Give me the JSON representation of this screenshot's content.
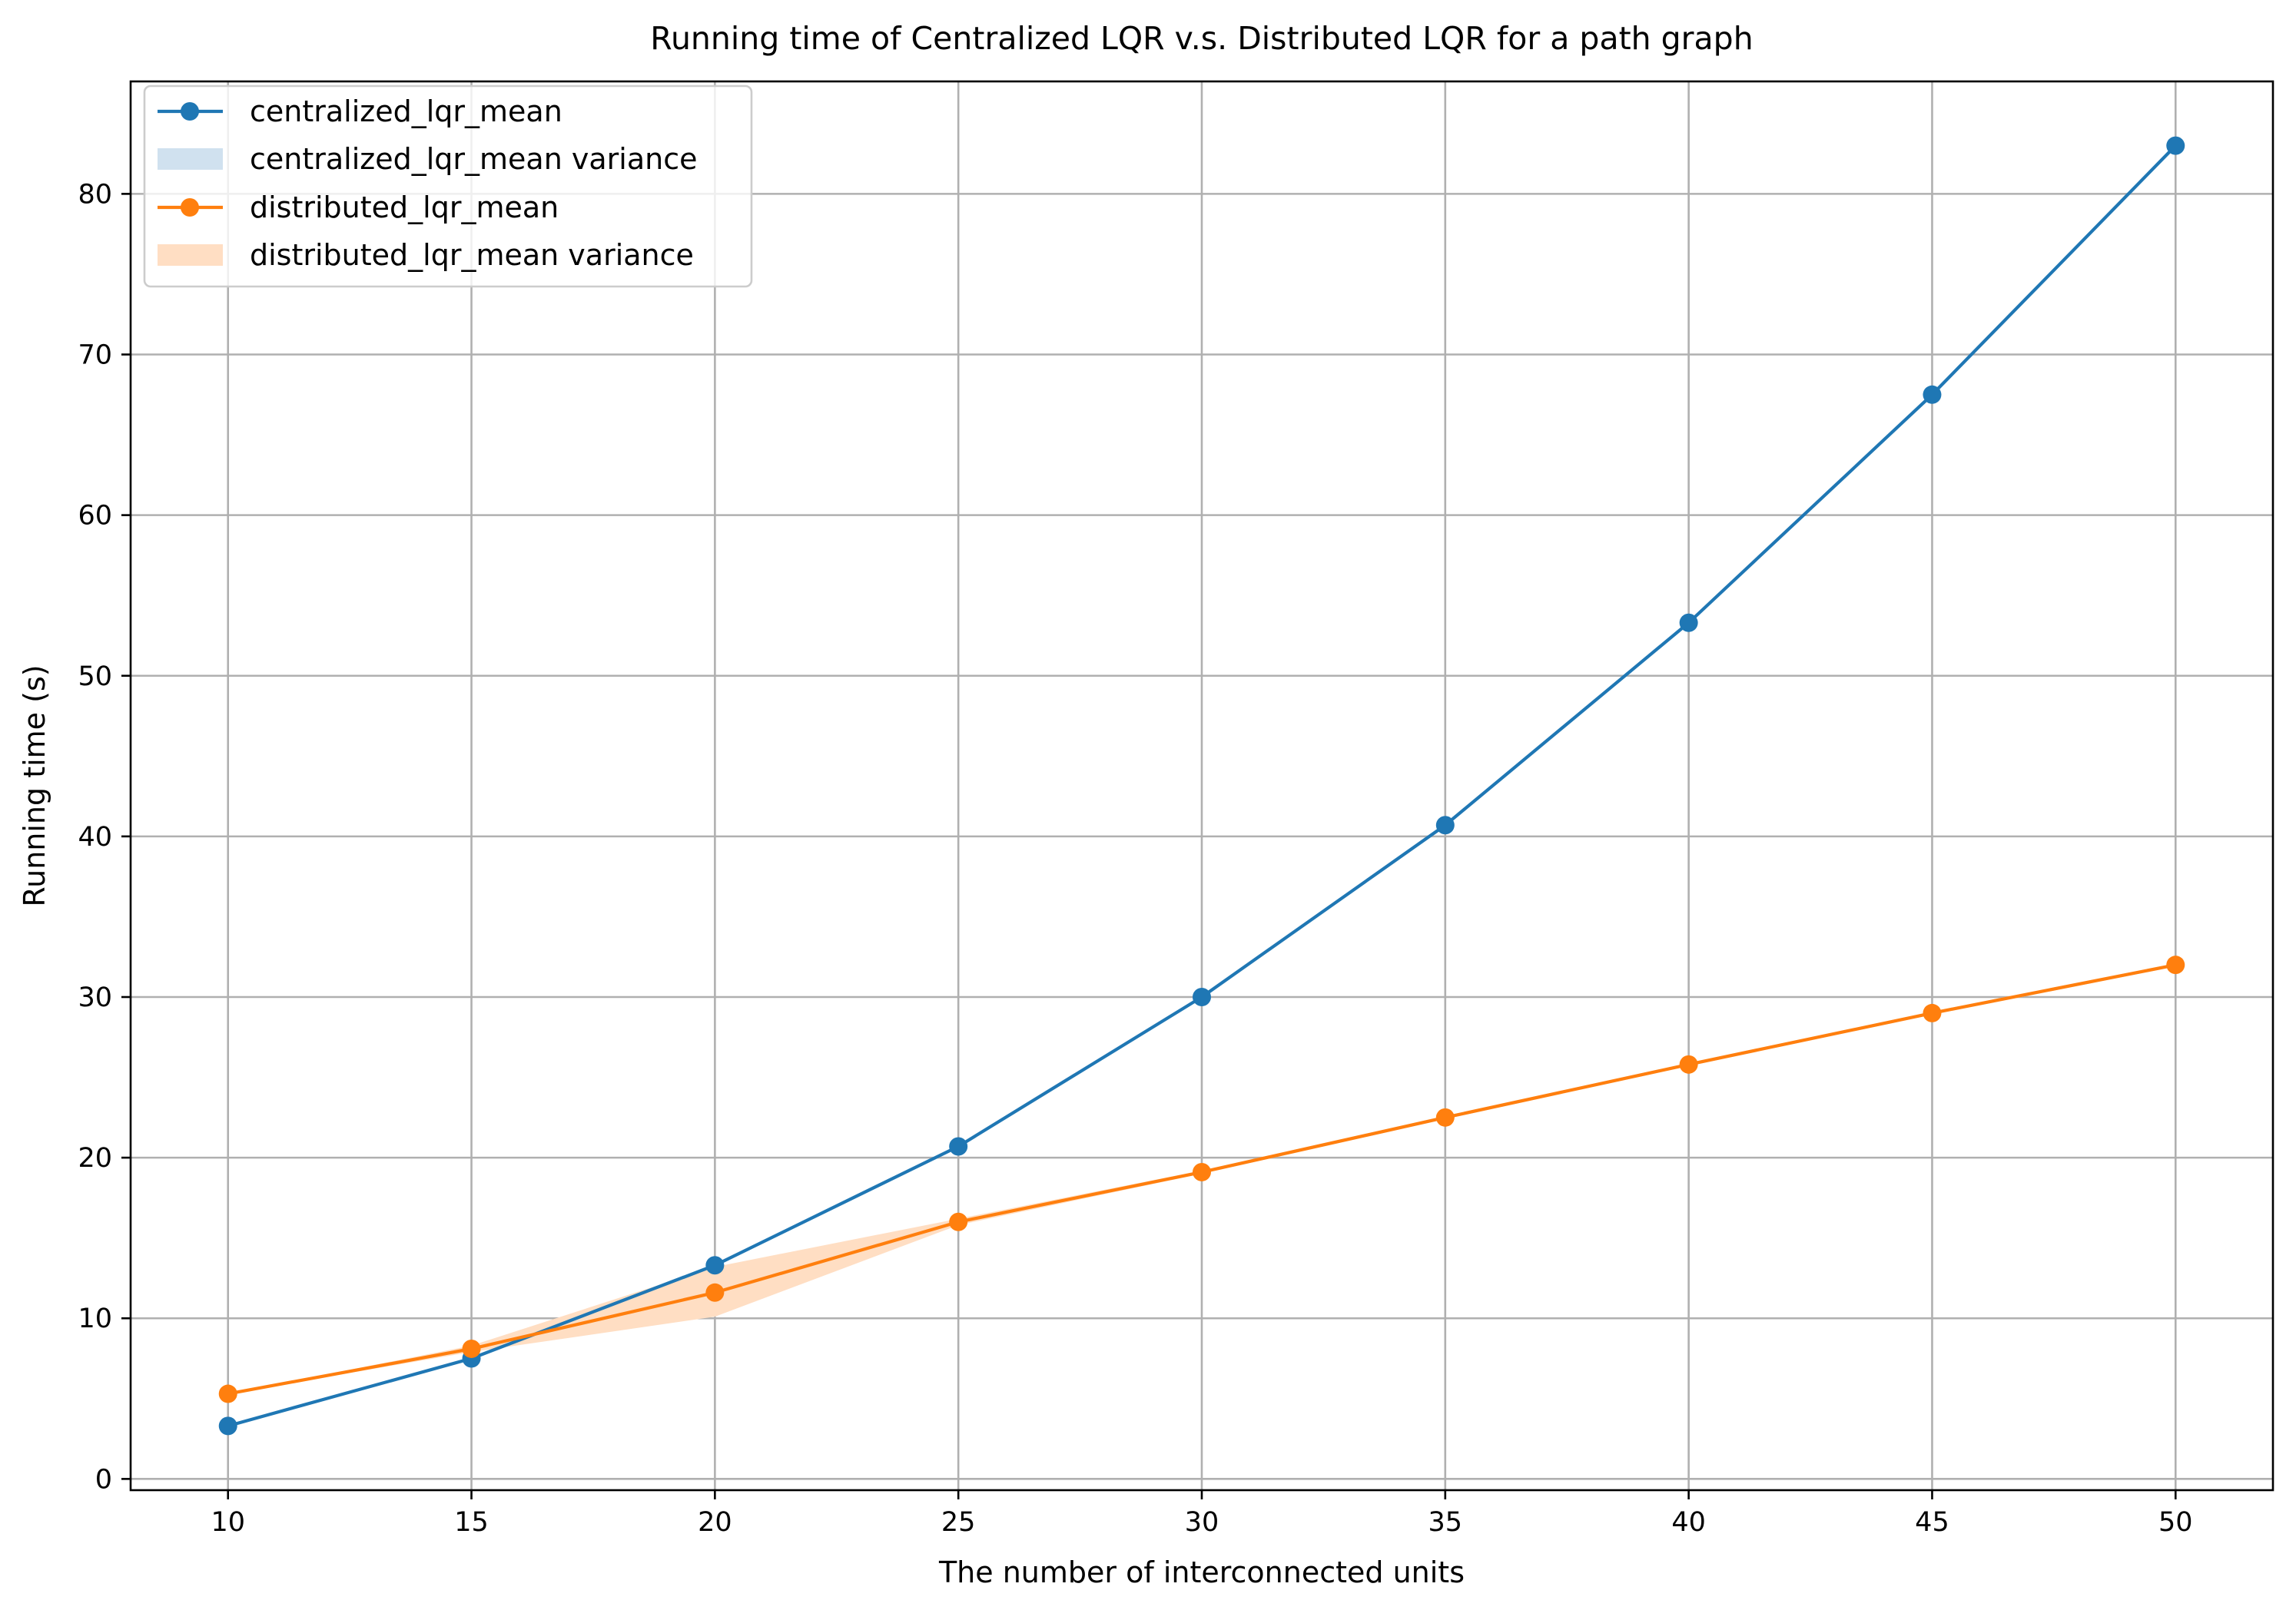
{
  "chart_data": {
    "type": "line",
    "title": "Running time of Centralized LQR v.s. Distributed LQR for a path graph",
    "xlabel": "The number of interconnected units",
    "ylabel": "Running time (s)",
    "x": [
      10,
      15,
      20,
      25,
      30,
      35,
      40,
      45,
      50
    ],
    "xlim": [
      8,
      52
    ],
    "ylim": [
      -0.7,
      87
    ],
    "xticks": [
      10,
      15,
      20,
      25,
      30,
      35,
      40,
      45,
      50
    ],
    "yticks": [
      0,
      10,
      20,
      30,
      40,
      50,
      60,
      70,
      80
    ],
    "grid": true,
    "legend_position": "top-left",
    "series": [
      {
        "name": "centralized_lqr_mean",
        "color": "#1f77b4",
        "values": [
          3.3,
          7.5,
          13.3,
          20.7,
          30.0,
          40.7,
          53.3,
          67.5,
          83.0
        ],
        "variance_label": "centralized_lqr_mean variance",
        "variance_lower": [
          3.3,
          7.5,
          13.3,
          20.7,
          30.0,
          40.7,
          53.3,
          67.5,
          83.0
        ],
        "variance_upper": [
          3.3,
          7.5,
          13.3,
          20.7,
          30.0,
          40.7,
          53.3,
          67.5,
          83.0
        ]
      },
      {
        "name": "distributed_lqr_mean",
        "color": "#ff7f0e",
        "values": [
          5.3,
          8.1,
          11.6,
          16.0,
          19.1,
          22.5,
          25.8,
          29.0,
          32.0
        ],
        "variance_label": "distributed_lqr_mean variance",
        "variance_lower": [
          5.3,
          7.9,
          10.1,
          15.8,
          19.0,
          22.4,
          25.7,
          28.9,
          31.9
        ],
        "variance_upper": [
          5.3,
          8.3,
          13.2,
          16.2,
          19.2,
          22.6,
          25.9,
          29.1,
          32.1
        ]
      }
    ],
    "band_colors": [
      "#d0e1ef",
      "#ffdec3"
    ]
  }
}
